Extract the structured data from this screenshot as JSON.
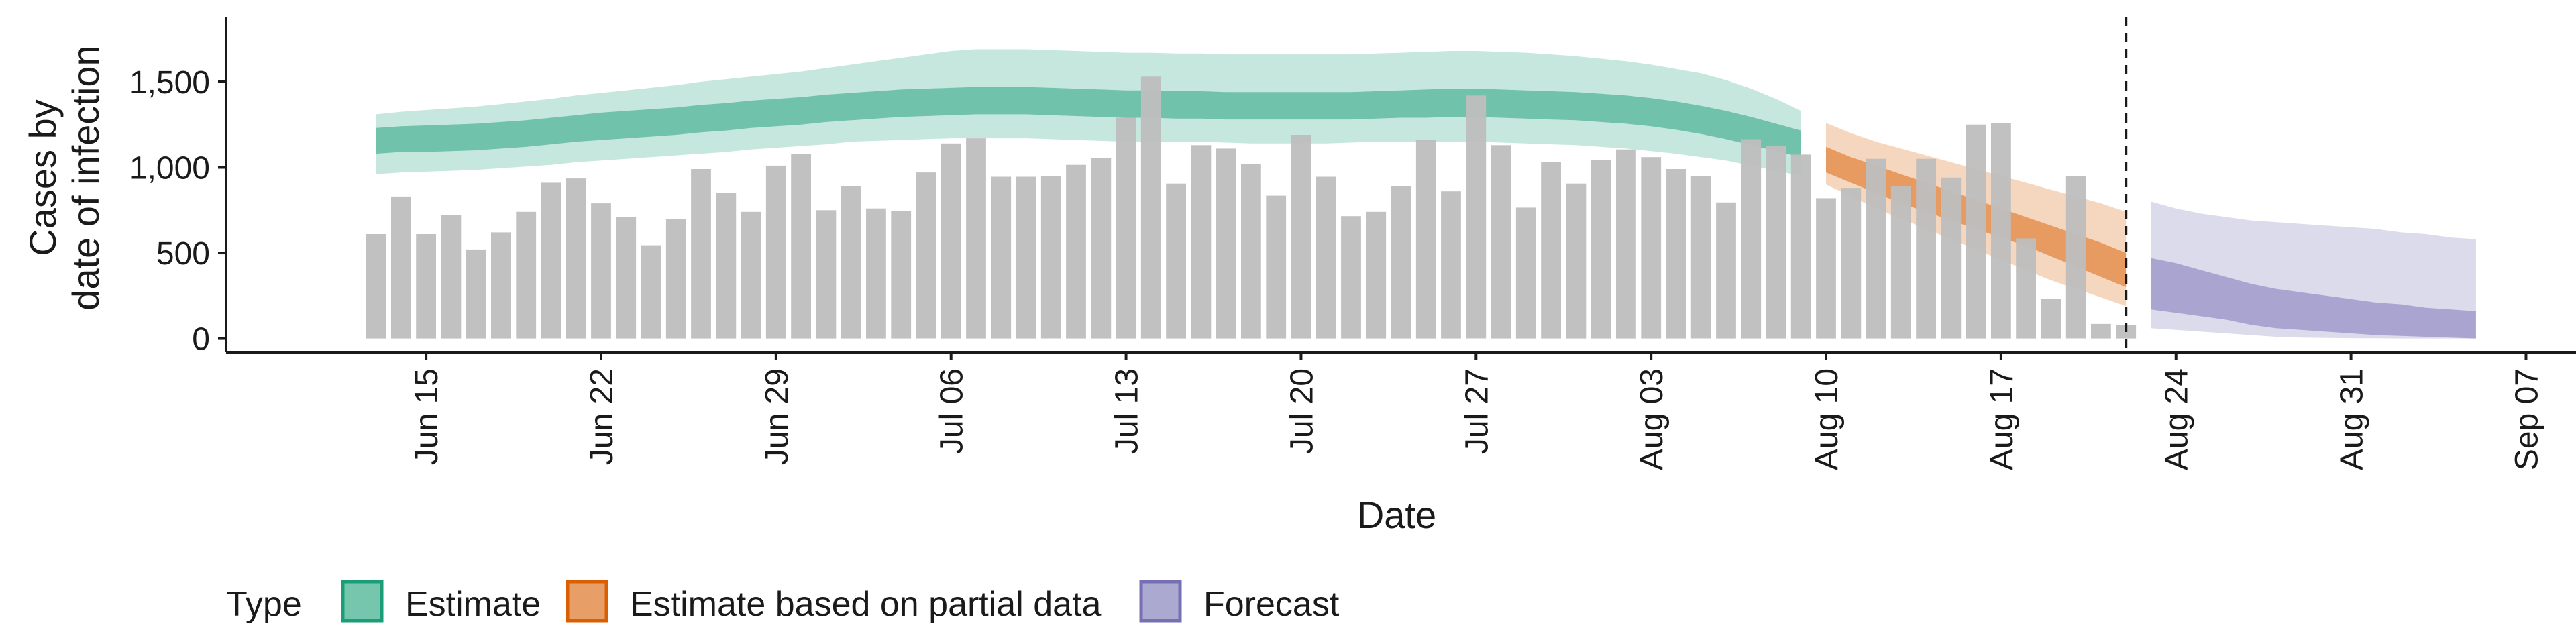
{
  "chart_data": {
    "type": "bar",
    "title": "",
    "xlabel": "Date",
    "ylabel": [
      "Cases by",
      "date of infection"
    ],
    "xlim": [
      "2020-06-07",
      "2020-09-09"
    ],
    "ylim": [
      -80,
      1880
    ],
    "x_ticks": [
      {
        "date": "2020-06-15",
        "label": "Jun 15"
      },
      {
        "date": "2020-06-22",
        "label": "Jun 22"
      },
      {
        "date": "2020-06-29",
        "label": "Jun 29"
      },
      {
        "date": "2020-07-06",
        "label": "Jul 06"
      },
      {
        "date": "2020-07-13",
        "label": "Jul 13"
      },
      {
        "date": "2020-07-20",
        "label": "Jul 20"
      },
      {
        "date": "2020-07-27",
        "label": "Jul 27"
      },
      {
        "date": "2020-08-03",
        "label": "Aug 03"
      },
      {
        "date": "2020-08-10",
        "label": "Aug 10"
      },
      {
        "date": "2020-08-17",
        "label": "Aug 17"
      },
      {
        "date": "2020-08-24",
        "label": "Aug 24"
      },
      {
        "date": "2020-08-31",
        "label": "Aug 31"
      },
      {
        "date": "2020-09-07",
        "label": "Sep 07"
      }
    ],
    "y_ticks": [
      {
        "value": 0,
        "label": "0"
      },
      {
        "value": 500,
        "label": "500"
      },
      {
        "value": 1000,
        "label": "1,000"
      },
      {
        "value": 1500,
        "label": "1,500"
      }
    ],
    "bars": {
      "color": "#bebebe",
      "dates": [
        "2020-06-13",
        "2020-06-14",
        "2020-06-15",
        "2020-06-16",
        "2020-06-17",
        "2020-06-18",
        "2020-06-19",
        "2020-06-20",
        "2020-06-21",
        "2020-06-22",
        "2020-06-23",
        "2020-06-24",
        "2020-06-25",
        "2020-06-26",
        "2020-06-27",
        "2020-06-28",
        "2020-06-29",
        "2020-06-30",
        "2020-07-01",
        "2020-07-02",
        "2020-07-03",
        "2020-07-04",
        "2020-07-05",
        "2020-07-06",
        "2020-07-07",
        "2020-07-08",
        "2020-07-09",
        "2020-07-10",
        "2020-07-11",
        "2020-07-12",
        "2020-07-13",
        "2020-07-14",
        "2020-07-15",
        "2020-07-16",
        "2020-07-17",
        "2020-07-18",
        "2020-07-19",
        "2020-07-20",
        "2020-07-21",
        "2020-07-22",
        "2020-07-23",
        "2020-07-24",
        "2020-07-25",
        "2020-07-26",
        "2020-07-27",
        "2020-07-28",
        "2020-07-29",
        "2020-07-30",
        "2020-07-31",
        "2020-08-01",
        "2020-08-02",
        "2020-08-03",
        "2020-08-04",
        "2020-08-05",
        "2020-08-06",
        "2020-08-07",
        "2020-08-08",
        "2020-08-09",
        "2020-08-10",
        "2020-08-11",
        "2020-08-12",
        "2020-08-13",
        "2020-08-14",
        "2020-08-15",
        "2020-08-16",
        "2020-08-17",
        "2020-08-18",
        "2020-08-19",
        "2020-08-20",
        "2020-08-21",
        "2020-08-22"
      ],
      "values": [
        610,
        830,
        610,
        720,
        520,
        620,
        740,
        910,
        935,
        790,
        710,
        545,
        700,
        990,
        850,
        740,
        1010,
        1080,
        750,
        890,
        760,
        745,
        970,
        1140,
        1170,
        945,
        945,
        950,
        1015,
        1055,
        1290,
        1530,
        905,
        1130,
        1110,
        1020,
        835,
        1190,
        945,
        715,
        740,
        890,
        1160,
        860,
        1420,
        1130,
        765,
        1030,
        905,
        1045,
        1105,
        1060,
        990,
        950,
        795,
        1165,
        1125,
        1075,
        820,
        880,
        1050,
        890,
        1050,
        940,
        1250,
        1260,
        585,
        230,
        950,
        85,
        80
      ]
    },
    "series": [
      {
        "name": "Estimate",
        "color": "#1b9e77",
        "dates": [
          "2020-06-13",
          "2020-06-14",
          "2020-06-15",
          "2020-06-16",
          "2020-06-17",
          "2020-06-18",
          "2020-06-19",
          "2020-06-20",
          "2020-06-21",
          "2020-06-22",
          "2020-06-23",
          "2020-06-24",
          "2020-06-25",
          "2020-06-26",
          "2020-06-27",
          "2020-06-28",
          "2020-06-29",
          "2020-06-30",
          "2020-07-01",
          "2020-07-02",
          "2020-07-03",
          "2020-07-04",
          "2020-07-05",
          "2020-07-06",
          "2020-07-07",
          "2020-07-08",
          "2020-07-09",
          "2020-07-10",
          "2020-07-11",
          "2020-07-12",
          "2020-07-13",
          "2020-07-14",
          "2020-07-15",
          "2020-07-16",
          "2020-07-17",
          "2020-07-18",
          "2020-07-19",
          "2020-07-20",
          "2020-07-21",
          "2020-07-22",
          "2020-07-23",
          "2020-07-24",
          "2020-07-25",
          "2020-07-26",
          "2020-07-27",
          "2020-07-28",
          "2020-07-29",
          "2020-07-30",
          "2020-07-31",
          "2020-08-01",
          "2020-08-02",
          "2020-08-03",
          "2020-08-04",
          "2020-08-05",
          "2020-08-06",
          "2020-08-07",
          "2020-08-08",
          "2020-08-09"
        ],
        "outer_lower": [
          960,
          970,
          975,
          980,
          985,
          995,
          1005,
          1015,
          1030,
          1040,
          1050,
          1060,
          1070,
          1080,
          1090,
          1105,
          1115,
          1125,
          1135,
          1150,
          1155,
          1160,
          1165,
          1170,
          1170,
          1170,
          1170,
          1165,
          1160,
          1155,
          1150,
          1150,
          1150,
          1150,
          1145,
          1140,
          1140,
          1140,
          1140,
          1145,
          1150,
          1150,
          1150,
          1150,
          1150,
          1145,
          1140,
          1135,
          1130,
          1120,
          1110,
          1095,
          1080,
          1060,
          1040,
          1010,
          980,
          950
        ],
        "inner_lower": [
          1080,
          1090,
          1090,
          1095,
          1100,
          1110,
          1120,
          1135,
          1150,
          1160,
          1170,
          1180,
          1190,
          1205,
          1215,
          1230,
          1240,
          1250,
          1265,
          1275,
          1285,
          1295,
          1300,
          1305,
          1310,
          1310,
          1310,
          1305,
          1300,
          1295,
          1290,
          1290,
          1285,
          1285,
          1280,
          1280,
          1280,
          1280,
          1280,
          1280,
          1285,
          1290,
          1290,
          1295,
          1295,
          1290,
          1285,
          1280,
          1275,
          1265,
          1255,
          1240,
          1220,
          1195,
          1165,
          1130,
          1095,
          1060
        ],
        "inner_upper": [
          1230,
          1240,
          1245,
          1250,
          1255,
          1265,
          1275,
          1290,
          1305,
          1320,
          1330,
          1340,
          1350,
          1365,
          1375,
          1390,
          1400,
          1410,
          1425,
          1435,
          1445,
          1455,
          1460,
          1465,
          1470,
          1470,
          1470,
          1465,
          1460,
          1455,
          1450,
          1450,
          1445,
          1445,
          1440,
          1440,
          1440,
          1440,
          1440,
          1440,
          1445,
          1450,
          1455,
          1460,
          1460,
          1455,
          1450,
          1445,
          1440,
          1430,
          1420,
          1405,
          1385,
          1360,
          1330,
          1295,
          1255,
          1215
        ],
        "outer_upper": [
          1310,
          1325,
          1335,
          1345,
          1355,
          1370,
          1385,
          1400,
          1420,
          1435,
          1450,
          1465,
          1480,
          1500,
          1515,
          1530,
          1545,
          1560,
          1580,
          1600,
          1620,
          1640,
          1660,
          1680,
          1690,
          1690,
          1690,
          1685,
          1680,
          1675,
          1670,
          1670,
          1665,
          1665,
          1660,
          1660,
          1660,
          1660,
          1660,
          1660,
          1665,
          1670,
          1675,
          1680,
          1680,
          1675,
          1670,
          1660,
          1650,
          1635,
          1620,
          1600,
          1575,
          1550,
          1510,
          1460,
          1400,
          1330
        ]
      },
      {
        "name": "Estimate based on partial data",
        "color": "#d95f02",
        "dates": [
          "2020-08-10",
          "2020-08-11",
          "2020-08-12",
          "2020-08-13",
          "2020-08-14",
          "2020-08-15",
          "2020-08-16",
          "2020-08-17",
          "2020-08-18",
          "2020-08-19",
          "2020-08-20",
          "2020-08-21",
          "2020-08-22"
        ],
        "outer_lower": [
          900,
          830,
          760,
          700,
          640,
          580,
          520,
          460,
          400,
          340,
          290,
          240,
          190
        ],
        "inner_lower": [
          970,
          910,
          850,
          790,
          740,
          690,
          640,
          590,
          540,
          480,
          420,
          360,
          300
        ],
        "inner_upper": [
          1120,
          1060,
          1010,
          960,
          910,
          860,
          810,
          760,
          710,
          660,
          610,
          560,
          500
        ],
        "outer_upper": [
          1260,
          1200,
          1150,
          1110,
          1070,
          1030,
          990,
          950,
          910,
          870,
          830,
          790,
          740
        ]
      },
      {
        "name": "Forecast",
        "color": "#7570b3",
        "dates": [
          "2020-08-23",
          "2020-08-24",
          "2020-08-25",
          "2020-08-26",
          "2020-08-27",
          "2020-08-28",
          "2020-08-29",
          "2020-08-30",
          "2020-08-31",
          "2020-09-01",
          "2020-09-02",
          "2020-09-03",
          "2020-09-04",
          "2020-09-05"
        ],
        "outer_lower": [
          60,
          50,
          40,
          30,
          20,
          10,
          5,
          3,
          2,
          1,
          0,
          0,
          0,
          0
        ],
        "inner_lower": [
          170,
          150,
          130,
          110,
          80,
          60,
          50,
          40,
          30,
          20,
          15,
          10,
          5,
          0
        ],
        "inner_upper": [
          470,
          440,
          400,
          360,
          320,
          290,
          270,
          250,
          230,
          210,
          200,
          180,
          170,
          160
        ],
        "outer_upper": [
          800,
          760,
          730,
          710,
          690,
          680,
          670,
          660,
          650,
          640,
          620,
          610,
          590,
          580
        ]
      }
    ],
    "vline": {
      "date": "2020-08-22",
      "style": "dashed"
    },
    "legend": {
      "title": "Type",
      "position": "bottom-left",
      "items": [
        {
          "label": "Estimate",
          "color": "#1b9e77"
        },
        {
          "label": "Estimate based on partial data",
          "color": "#d95f02"
        },
        {
          "label": "Forecast",
          "color": "#7570b3"
        }
      ]
    },
    "grid": false
  }
}
